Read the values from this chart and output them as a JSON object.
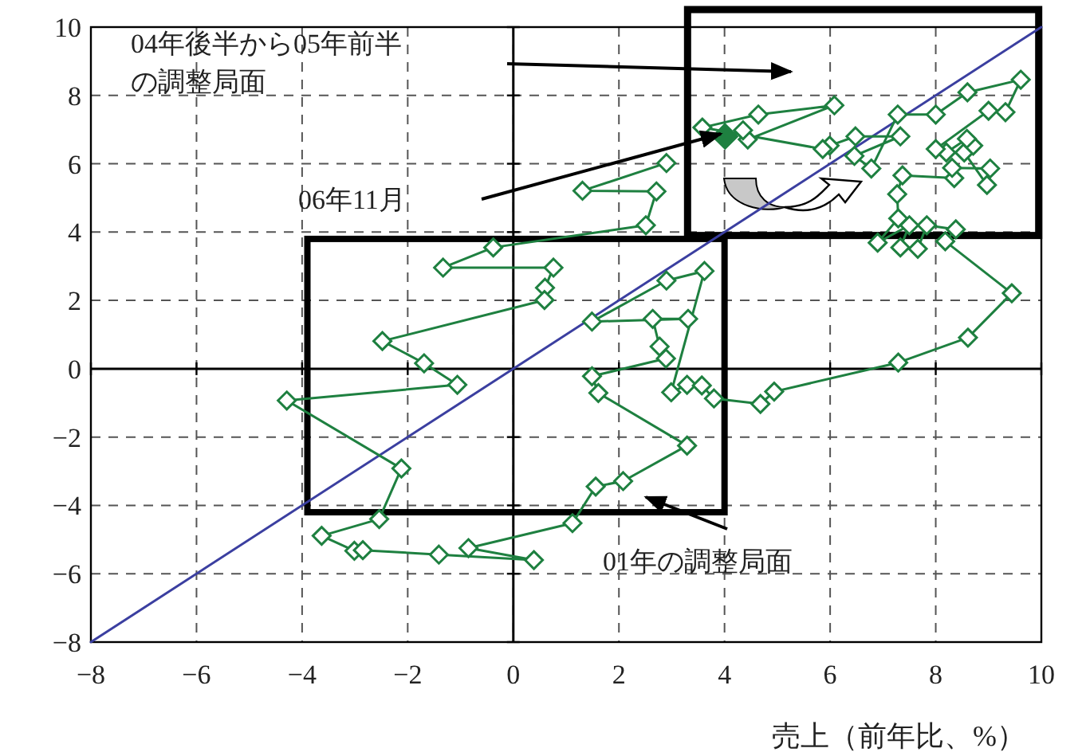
{
  "chart_data": {
    "type": "line",
    "xlabel": "売上（前年比、%）",
    "xlim": [
      -8,
      10
    ],
    "ylim": [
      -8,
      10
    ],
    "xticks": [
      -8,
      -6,
      -4,
      -2,
      0,
      2,
      4,
      6,
      8,
      10
    ],
    "yticks": [
      -8,
      -6,
      -4,
      -2,
      0,
      2,
      4,
      6,
      8,
      10
    ],
    "grid": true,
    "marker": "diamond",
    "series": [
      {
        "color": "#3b3fa0",
        "marker": "none",
        "x": [
          -8,
          10
        ],
        "values": [
          -8,
          10
        ]
      },
      {
        "color": "#1e8040",
        "x": [
          2.9,
          1.31,
          2.71,
          2.51,
          -0.38,
          -1.33,
          0.76,
          0.6,
          0.59,
          -2.48,
          -1.69,
          -1.06,
          -4.29,
          -2.12,
          -2.54,
          -3.63,
          -3.01,
          -2.85,
          -1.41,
          0.39,
          -0.85,
          1.12,
          1.56,
          2.08,
          3.29,
          1.61,
          1.49,
          2.89,
          2.77,
          2.64,
          3.31,
          1.49,
          2.9,
          3.62,
          2.99,
          3.29,
          3.57,
          3.8,
          4.68,
          4.94,
          7.29,
          8.61,
          9.44,
          8.18,
          8.38,
          7.83,
          7.66,
          7.33,
          7.5,
          6.9,
          7.29,
          7.27,
          7.37,
          8.35,
          8.31,
          9.03,
          8.97,
          8.54,
          8.71,
          8.59,
          8.2,
          8.0,
          9.0,
          9.32,
          9.61,
          8.6,
          8.0,
          7.28,
          6.78,
          6.46,
          7.33,
          6.48,
          5.99,
          5.86,
          3.58,
          4.64,
          6.08,
          4.44,
          4.35,
          4.01
        ],
        "values": [
          6.02,
          5.21,
          5.19,
          4.2,
          3.55,
          2.96,
          2.96,
          2.37,
          2.01,
          0.81,
          0.16,
          -0.47,
          -0.93,
          -2.92,
          -4.4,
          -4.89,
          -5.33,
          -5.31,
          -5.44,
          -5.6,
          -5.25,
          -4.52,
          -3.45,
          -3.29,
          -2.25,
          -0.71,
          -0.22,
          0.3,
          0.65,
          1.46,
          1.46,
          1.38,
          2.58,
          2.86,
          -0.69,
          -0.47,
          -0.49,
          -0.87,
          -1.03,
          -0.67,
          0.18,
          0.91,
          2.21,
          3.73,
          4.08,
          4.2,
          3.51,
          3.55,
          4.2,
          3.69,
          4.4,
          5.11,
          5.66,
          5.58,
          5.88,
          5.86,
          5.38,
          6.33,
          6.53,
          6.73,
          6.33,
          6.43,
          7.55,
          7.51,
          8.46,
          8.09,
          7.44,
          7.44,
          5.86,
          6.23,
          6.8,
          6.8,
          6.53,
          6.43,
          7.06,
          7.44,
          7.71,
          6.71,
          6.98,
          6.8
        ]
      },
      {
        "type": "scatter",
        "color": "#1e8040",
        "x": [
          4.01
        ],
        "values": [
          6.8
        ]
      }
    ],
    "annotations": [
      "04年後半から05年前半の調整局面",
      "06年11月",
      "01年の調整局面"
    ]
  }
}
